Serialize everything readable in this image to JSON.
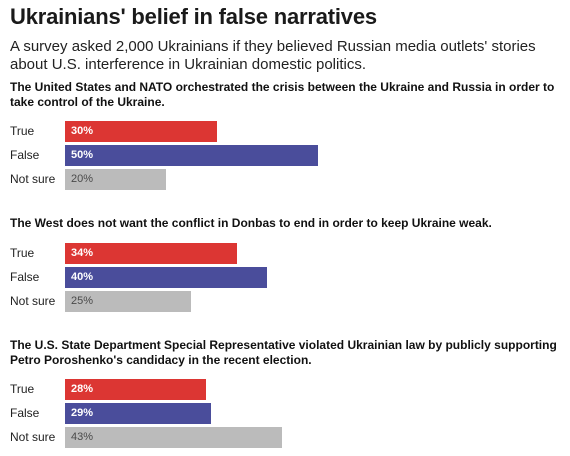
{
  "title": "Ukrainians' belief in false narratives",
  "subtitle": "A survey asked 2,000 Ukrainians if they believed Russian media outlets' stories about U.S. interference in Ukrainian domestic politics.",
  "colors": {
    "true": "#dc3633",
    "false": "#4a4d9b",
    "not_sure": "#bbbbbb"
  },
  "chart_data": [
    {
      "type": "bar",
      "orientation": "horizontal",
      "title": "The United States and NATO orchestrated the crisis between the Ukraine and Russia in order to take control of the Ukraine.",
      "categories": [
        "True",
        "False",
        "Not sure"
      ],
      "values": [
        30,
        50,
        20
      ],
      "value_labels": [
        "30%",
        "50%",
        "20%"
      ],
      "xlim": [
        0,
        100
      ]
    },
    {
      "type": "bar",
      "orientation": "horizontal",
      "title": "The West does not want the conflict in Donbas to end in order to keep Ukraine weak.",
      "categories": [
        "True",
        "False",
        "Not sure"
      ],
      "values": [
        34,
        40,
        25
      ],
      "value_labels": [
        "34%",
        "40%",
        "25%"
      ],
      "xlim": [
        0,
        100
      ]
    },
    {
      "type": "bar",
      "orientation": "horizontal",
      "title": "The U.S. State Department Special Representative violated Ukrainian law by publicly supporting Petro Poroshenko's candidacy in the recent election.",
      "categories": [
        "True",
        "False",
        "Not sure"
      ],
      "values": [
        28,
        29,
        43
      ],
      "value_labels": [
        "28%",
        "29%",
        "43%"
      ],
      "xlim": [
        0,
        100
      ]
    }
  ]
}
